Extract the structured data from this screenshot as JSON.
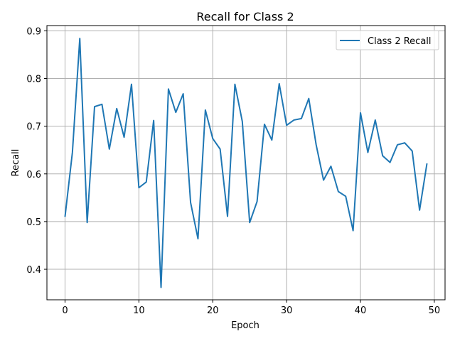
{
  "chart_data": {
    "type": "line",
    "title": "Recall for Class 2",
    "xlabel": "Epoch",
    "ylabel": "Recall",
    "xlim": [
      -2.45,
      51.45
    ],
    "ylim": [
      0.336,
      0.911
    ],
    "xticks": [
      0,
      10,
      20,
      30,
      40,
      50
    ],
    "yticks": [
      0.4,
      0.5,
      0.6,
      0.7,
      0.8,
      0.9
    ],
    "xtick_labels": [
      "0",
      "10",
      "20",
      "30",
      "40",
      "50"
    ],
    "ytick_labels": [
      "0.4",
      "0.5",
      "0.6",
      "0.7",
      "0.8",
      "0.9"
    ],
    "grid": true,
    "legend_position": "top-right",
    "series": [
      {
        "name": "Class 2 Recall",
        "color": "#1f77b4",
        "x": [
          0,
          1,
          2,
          3,
          4,
          5,
          6,
          7,
          8,
          9,
          10,
          11,
          12,
          13,
          14,
          15,
          16,
          17,
          18,
          19,
          20,
          21,
          22,
          23,
          24,
          25,
          26,
          27,
          28,
          29,
          30,
          31,
          32,
          33,
          34,
          35,
          36,
          37,
          38,
          39,
          40,
          41,
          42,
          43,
          44,
          45,
          46,
          47,
          48,
          49
        ],
        "values": [
          0.51,
          0.645,
          0.884,
          0.498,
          0.741,
          0.746,
          0.652,
          0.737,
          0.677,
          0.788,
          0.571,
          0.583,
          0.712,
          0.362,
          0.778,
          0.729,
          0.768,
          0.54,
          0.464,
          0.734,
          0.674,
          0.652,
          0.511,
          0.788,
          0.71,
          0.498,
          0.542,
          0.704,
          0.671,
          0.789,
          0.702,
          0.713,
          0.716,
          0.758,
          0.661,
          0.587,
          0.616,
          0.563,
          0.553,
          0.481,
          0.728,
          0.645,
          0.713,
          0.638,
          0.624,
          0.661,
          0.665,
          0.648,
          0.524,
          0.622
        ]
      }
    ]
  }
}
